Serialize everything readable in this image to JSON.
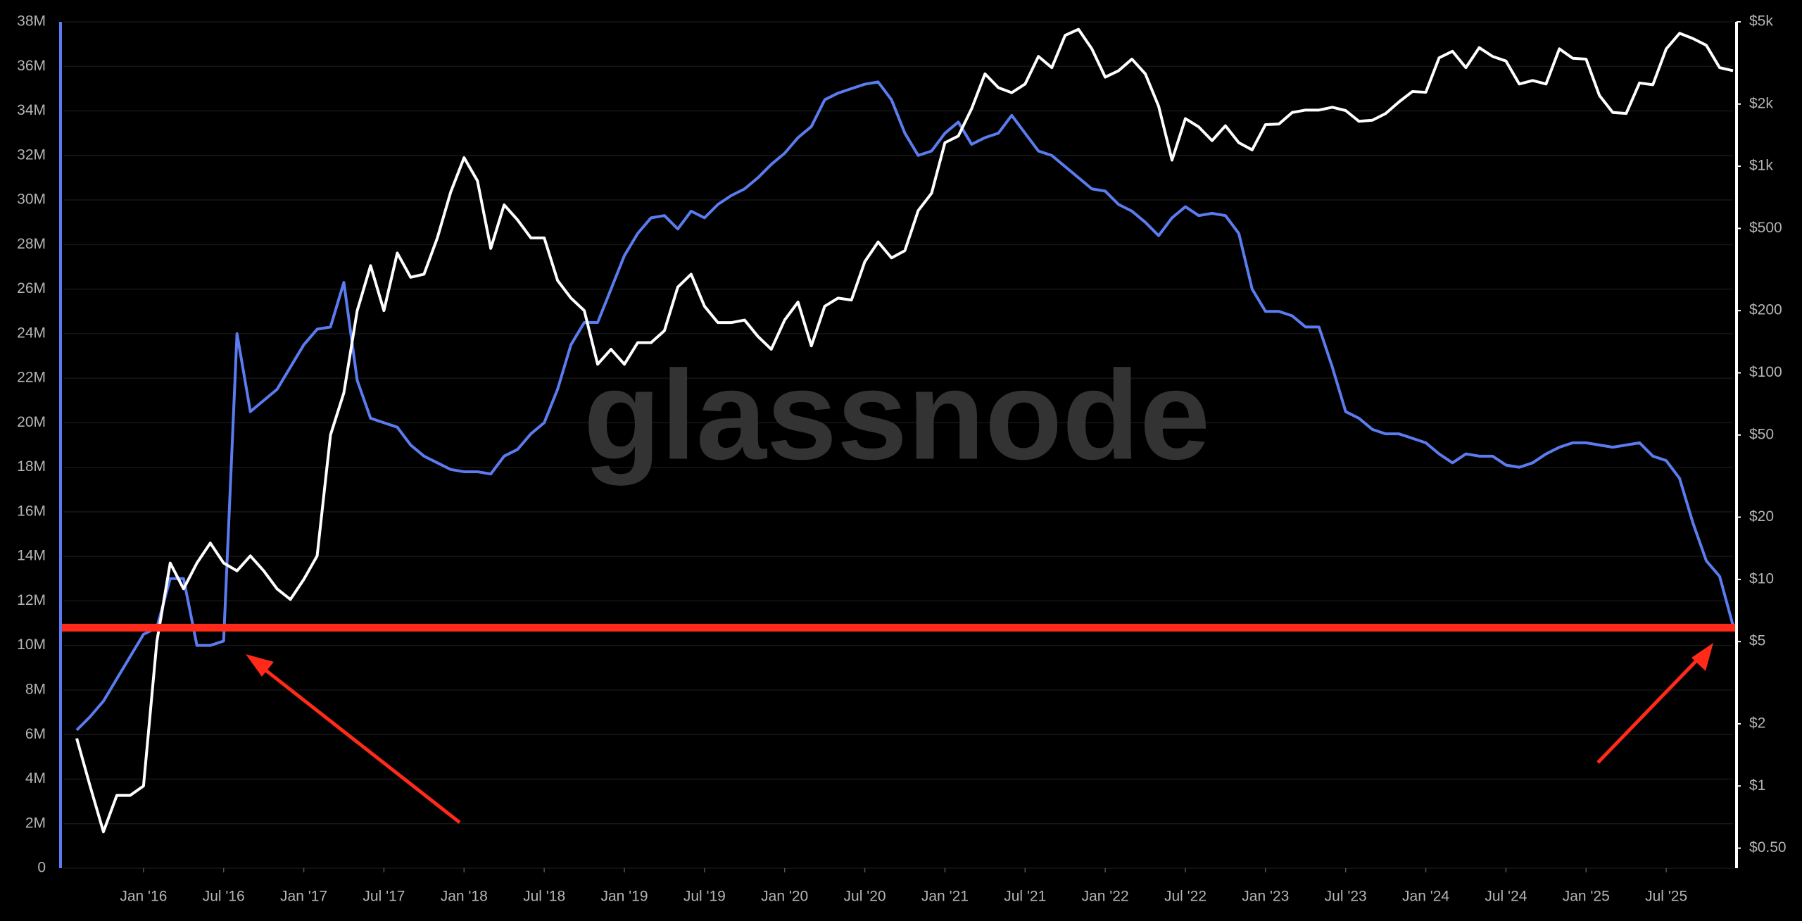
{
  "chart_data": {
    "type": "line",
    "watermark": "glassnode",
    "x": [
      "2015-08",
      "2015-09",
      "2015-10",
      "2015-11",
      "2015-12",
      "2016-01",
      "2016-02",
      "2016-03",
      "2016-04",
      "2016-05",
      "2016-06",
      "2016-07",
      "2016-08",
      "2016-09",
      "2016-10",
      "2016-11",
      "2016-12",
      "2017-01",
      "2017-02",
      "2017-03",
      "2017-04",
      "2017-05",
      "2017-06",
      "2017-07",
      "2017-08",
      "2017-09",
      "2017-10",
      "2017-11",
      "2017-12",
      "2018-01",
      "2018-02",
      "2018-03",
      "2018-04",
      "2018-05",
      "2018-06",
      "2018-07",
      "2018-08",
      "2018-09",
      "2018-10",
      "2018-11",
      "2018-12",
      "2019-01",
      "2019-02",
      "2019-03",
      "2019-04",
      "2019-05",
      "2019-06",
      "2019-07",
      "2019-08",
      "2019-09",
      "2019-10",
      "2019-11",
      "2019-12",
      "2020-01",
      "2020-02",
      "2020-03",
      "2020-04",
      "2020-05",
      "2020-06",
      "2020-07",
      "2020-08",
      "2020-09",
      "2020-10",
      "2020-11",
      "2020-12",
      "2021-01",
      "2021-02",
      "2021-03",
      "2021-04",
      "2021-05",
      "2021-06",
      "2021-07",
      "2021-08",
      "2021-09",
      "2021-10",
      "2021-11",
      "2021-12",
      "2022-01",
      "2022-02",
      "2022-03",
      "2022-04",
      "2022-05",
      "2022-06",
      "2022-07",
      "2022-08",
      "2022-09",
      "2022-10",
      "2022-11",
      "2022-12",
      "2023-01",
      "2023-02",
      "2023-03",
      "2023-04",
      "2023-05",
      "2023-06",
      "2023-07",
      "2023-08",
      "2023-09",
      "2023-10",
      "2023-11",
      "2023-12",
      "2024-01",
      "2024-02",
      "2024-03",
      "2024-04",
      "2024-05",
      "2024-06",
      "2024-07",
      "2024-08",
      "2024-09",
      "2024-10",
      "2024-11",
      "2024-12",
      "2025-01",
      "2025-02",
      "2025-03",
      "2025-04",
      "2025-05",
      "2025-06",
      "2025-07",
      "2025-08",
      "2025-09",
      "2025-10",
      "2025-11",
      "2025-12"
    ],
    "xlim": [
      "2015-07",
      "2025-12"
    ],
    "xticks": [
      {
        "value": "2016-01",
        "label": "Jan '16"
      },
      {
        "value": "2016-07",
        "label": "Jul '16"
      },
      {
        "value": "2017-01",
        "label": "Jan '17"
      },
      {
        "value": "2017-07",
        "label": "Jul '17"
      },
      {
        "value": "2018-01",
        "label": "Jan '18"
      },
      {
        "value": "2018-07",
        "label": "Jul '18"
      },
      {
        "value": "2019-01",
        "label": "Jan '19"
      },
      {
        "value": "2019-07",
        "label": "Jul '19"
      },
      {
        "value": "2020-01",
        "label": "Jan '20"
      },
      {
        "value": "2020-07",
        "label": "Jul '20"
      },
      {
        "value": "2021-01",
        "label": "Jan '21"
      },
      {
        "value": "2021-07",
        "label": "Jul '21"
      },
      {
        "value": "2022-01",
        "label": "Jan '22"
      },
      {
        "value": "2022-07",
        "label": "Jul '22"
      },
      {
        "value": "2023-01",
        "label": "Jan '23"
      },
      {
        "value": "2023-07",
        "label": "Jul '23"
      },
      {
        "value": "2024-01",
        "label": "Jan '24"
      },
      {
        "value": "2024-07",
        "label": "Jul '24"
      },
      {
        "value": "2025-01",
        "label": "Jan '25"
      },
      {
        "value": "2025-07",
        "label": "Jul '25"
      }
    ],
    "ylim": [
      0,
      38000000
    ],
    "yticks": [
      0,
      {
        "value": 2000000,
        "label": "2M"
      },
      {
        "value": 4000000,
        "label": "4M"
      },
      {
        "value": 6000000,
        "label": "6M"
      },
      {
        "value": 8000000,
        "label": "8M"
      },
      {
        "value": 10000000,
        "label": "10M"
      },
      {
        "value": 12000000,
        "label": "12M"
      },
      {
        "value": 14000000,
        "label": "14M"
      },
      {
        "value": 16000000,
        "label": "16M"
      },
      {
        "value": 18000000,
        "label": "18M"
      },
      {
        "value": 20000000,
        "label": "20M"
      },
      {
        "value": 22000000,
        "label": "22M"
      },
      {
        "value": 24000000,
        "label": "24M"
      },
      {
        "value": 26000000,
        "label": "26M"
      },
      {
        "value": 28000000,
        "label": "28M"
      },
      {
        "value": 30000000,
        "label": "30M"
      },
      {
        "value": 32000000,
        "label": "32M"
      },
      {
        "value": 34000000,
        "label": "34M"
      },
      {
        "value": 36000000,
        "label": "36M"
      },
      {
        "value": 38000000,
        "label": "38M"
      }
    ],
    "y2lim": [
      0.4,
      5000
    ],
    "y2scale": "log",
    "y2ticks": [
      {
        "value": 0.5,
        "label": "$0.50"
      },
      {
        "value": 1,
        "label": "$1"
      },
      {
        "value": 2,
        "label": "$2"
      },
      {
        "value": 5,
        "label": "$5"
      },
      {
        "value": 10,
        "label": "$10"
      },
      {
        "value": 20,
        "label": "$20"
      },
      {
        "value": 50,
        "label": "$50"
      },
      {
        "value": 100,
        "label": "$100"
      },
      {
        "value": 200,
        "label": "$200"
      },
      {
        "value": 500,
        "label": "$500"
      },
      {
        "value": 1000,
        "label": "$1k"
      },
      {
        "value": 2000,
        "label": "$2k"
      },
      {
        "value": 5000,
        "label": "$5k"
      }
    ],
    "grid": true,
    "series": [
      {
        "color": "#5b7cf0",
        "values": [
          6200000,
          6800000,
          7500000,
          8500000,
          9500000,
          10500000,
          10800000,
          13000000,
          13000000,
          10000000,
          10000000,
          10200000,
          24000000,
          20500000,
          21000000,
          21500000,
          22500000,
          23500000,
          24200000,
          24300000,
          26300000,
          21900000,
          20200000,
          20000000,
          19800000,
          19000000,
          18500000,
          18200000,
          17900000,
          17800000,
          17800000,
          17700000,
          18500000,
          18800000,
          19500000,
          20000000,
          21500000,
          23500000,
          24500000,
          24500000,
          26000000,
          27500000,
          28500000,
          29200000,
          29300000,
          28700000,
          29500000,
          29200000,
          29800000,
          30200000,
          30500000,
          31000000,
          31600000,
          32100000,
          32800000,
          33300000,
          34500000,
          34800000,
          35000000,
          35200000,
          35300000,
          34500000,
          33000000,
          32000000,
          32200000,
          33000000,
          33500000,
          32500000,
          32800000,
          33000000,
          33800000,
          33000000,
          32200000,
          32000000,
          31500000,
          31000000,
          30500000,
          30400000,
          29800000,
          29500000,
          29000000,
          28400000,
          29200000,
          29700000,
          29300000,
          29400000,
          29300000,
          28500000,
          26000000,
          25000000,
          25000000,
          24800000,
          24300000,
          24300000,
          22500000,
          20500000,
          20200000,
          19700000,
          19500000,
          19500000,
          19300000,
          19100000,
          18600000,
          18200000,
          18600000,
          18500000,
          18500000,
          18100000,
          18000000,
          18200000,
          18600000,
          18900000,
          19100000,
          19100000,
          19000000,
          18900000,
          19000000,
          19100000,
          18500000,
          18300000,
          17500000,
          15500000,
          13800000,
          13100000,
          10900000
        ]
      },
      {
        "color": "#ffffff",
        "axis": "y2",
        "values": [
          1.7,
          1.0,
          0.6,
          0.9,
          0.9,
          1.0,
          5,
          12,
          9,
          12,
          15,
          12,
          11,
          13,
          11,
          9,
          8,
          10,
          13,
          50,
          80,
          200,
          330,
          200,
          380,
          290,
          300,
          450,
          750,
          1100,
          850,
          400,
          650,
          550,
          450,
          450,
          280,
          230,
          200,
          110,
          130,
          110,
          140,
          140,
          160,
          260,
          300,
          210,
          175,
          175,
          180,
          150,
          130,
          180,
          220,
          135,
          210,
          230,
          225,
          345,
          430,
          360,
          390,
          610,
          740,
          1300,
          1400,
          1900,
          2800,
          2400,
          2270,
          2500,
          3400,
          3000,
          4300,
          4600,
          3700,
          2700,
          2900,
          3300,
          2800,
          1950,
          1070,
          1700,
          1550,
          1330,
          1570,
          1300,
          1200,
          1590,
          1600,
          1820,
          1870,
          1870,
          1930,
          1860,
          1650,
          1670,
          1800,
          2050,
          2300,
          2280,
          3350,
          3600,
          3000,
          3750,
          3400,
          3230,
          2500,
          2600,
          2500,
          3700,
          3330,
          3300,
          2200,
          1820,
          1800,
          2530,
          2480,
          3700,
          4400,
          4150,
          3850,
          3000,
          2900
        ]
      }
    ],
    "reference_line": {
      "value": 10800000,
      "color": "#ff2a1a"
    }
  }
}
